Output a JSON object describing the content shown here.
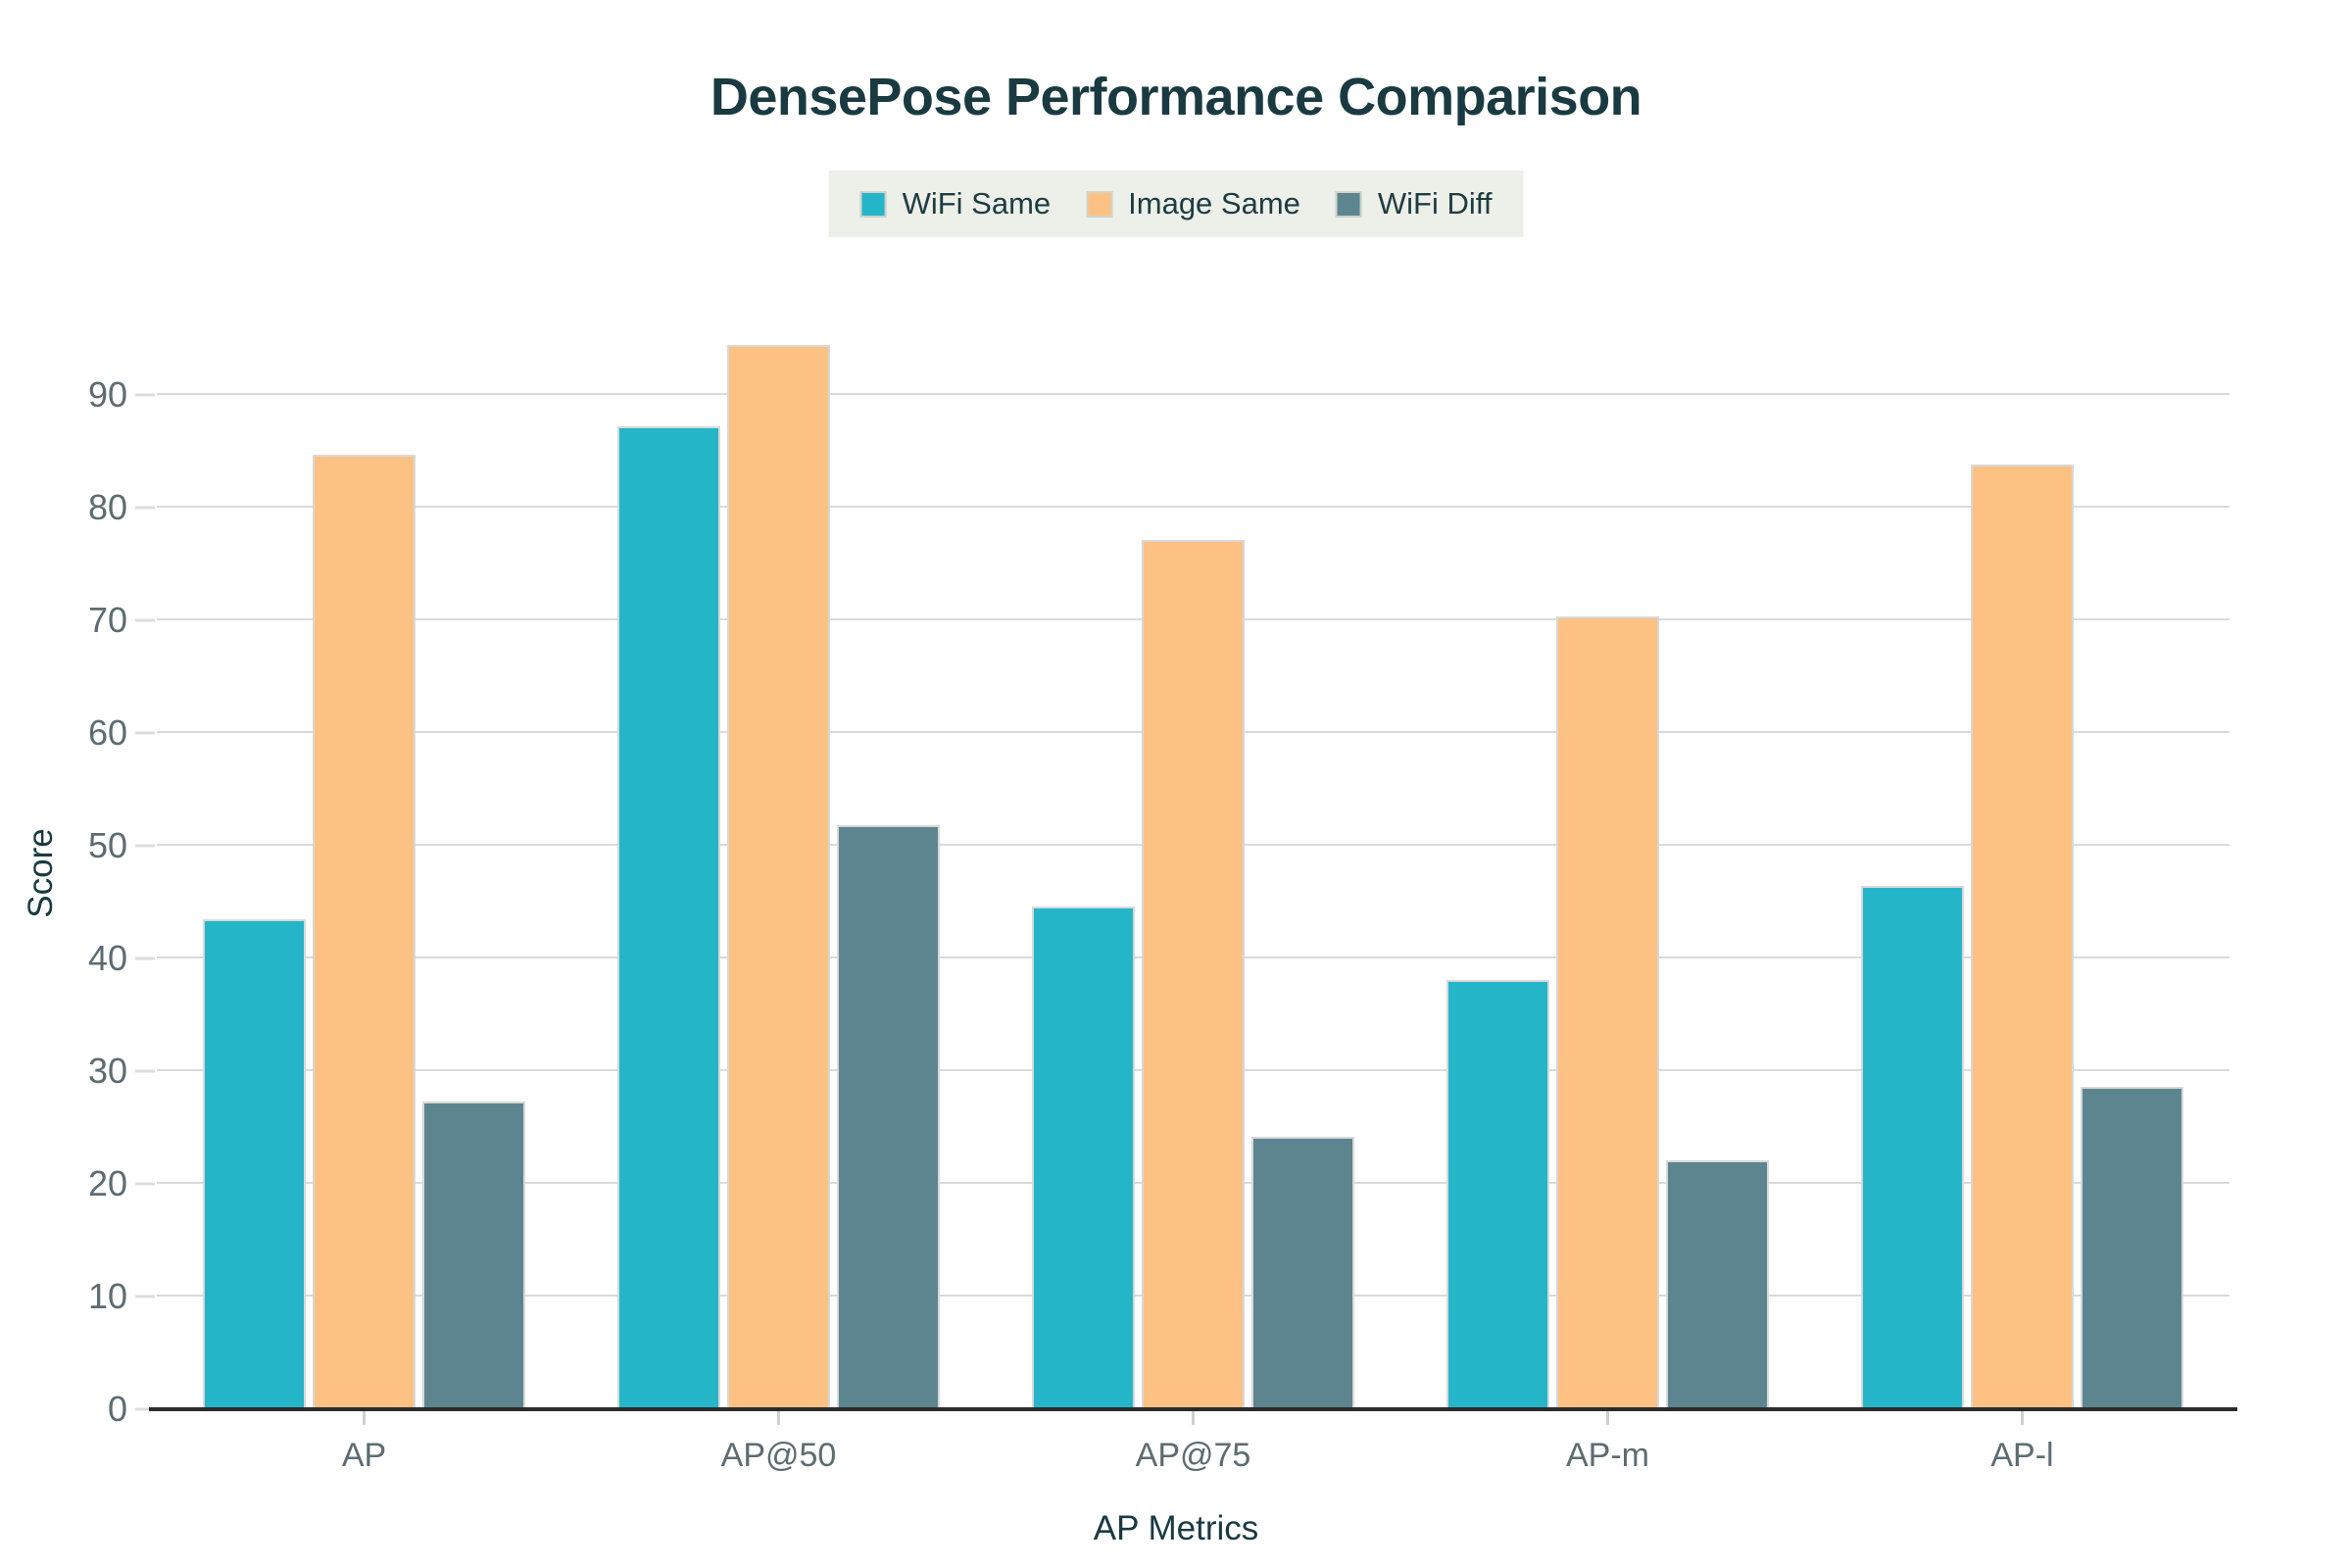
{
  "title": "DensePose Performance Comparison",
  "colors": {
    "background": "#ffffff",
    "title_text": "#1a3a41",
    "axis_title_text": "#1a3a41",
    "tick_label_text": "#5d6c72",
    "gridline": "#dadada",
    "axis_line": "#2b2b2b",
    "legend_background": "#edefe9",
    "bar_border": "#d8d8d8",
    "series_wifi_same": "#24b5c9",
    "series_image_same": "#fec184",
    "series_wifi_diff": "#5d858f"
  },
  "chart_data": {
    "type": "bar",
    "title": "DensePose Performance Comparison",
    "xlabel": "AP Metrics",
    "ylabel": "Score",
    "categories": [
      "AP",
      "AP@50",
      "AP@75",
      "AP-m",
      "AP-l"
    ],
    "series": [
      {
        "name": "WiFi Same",
        "color": "#24b5c9",
        "values": [
          43.5,
          87.2,
          44.6,
          38.1,
          46.4
        ]
      },
      {
        "name": "Image Same",
        "color": "#fec184",
        "values": [
          84.7,
          94.4,
          77.1,
          70.3,
          83.8
        ]
      },
      {
        "name": "WiFi Diff",
        "color": "#5d858f",
        "values": [
          27.3,
          51.8,
          24.2,
          22.1,
          28.6
        ]
      }
    ],
    "ylim": [
      0,
      95
    ],
    "yticks": [
      0,
      10,
      20,
      30,
      40,
      50,
      60,
      70,
      80,
      90
    ],
    "grid": true,
    "legend_position": "top-center"
  }
}
